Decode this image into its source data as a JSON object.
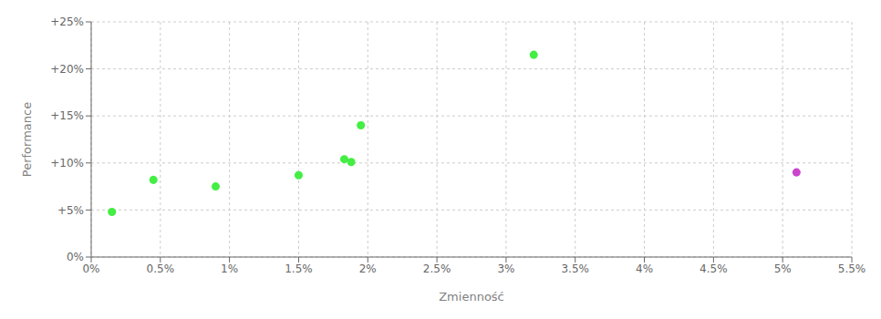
{
  "chart_data": {
    "type": "scatter",
    "xlabel": "Zmienność",
    "ylabel": "Performance",
    "series": [
      {
        "color": "#44ee44",
        "x": [
          0.15,
          0.45,
          0.9,
          1.5,
          1.83,
          1.88,
          1.95,
          3.2
        ],
        "values": [
          4.8,
          8.2,
          7.5,
          8.7,
          10.4,
          10.1,
          14.0,
          21.5
        ]
      },
      {
        "color": "#cc44cc",
        "x": [
          5.1
        ],
        "values": [
          9.0
        ]
      }
    ],
    "xlim": [
      0,
      5.5
    ],
    "ylim": [
      0,
      25
    ],
    "xticks": [
      {
        "value": 0,
        "label": "0%"
      },
      {
        "value": 0.5,
        "label": "0.5%"
      },
      {
        "value": 1.0,
        "label": "1%"
      },
      {
        "value": 1.5,
        "label": "1.5%"
      },
      {
        "value": 2.0,
        "label": "2%"
      },
      {
        "value": 2.5,
        "label": "2.5%"
      },
      {
        "value": 3.0,
        "label": "3%"
      },
      {
        "value": 3.5,
        "label": "3.5%"
      },
      {
        "value": 4.0,
        "label": "4%"
      },
      {
        "value": 4.5,
        "label": "4.5%"
      },
      {
        "value": 5.0,
        "label": "5%"
      },
      {
        "value": 5.5,
        "label": "5.5%"
      }
    ],
    "yticks": [
      {
        "value": 0,
        "label": "0%"
      },
      {
        "value": 5,
        "label": "+5%"
      },
      {
        "value": 10,
        "label": "+10%"
      },
      {
        "value": 15,
        "label": "+15%"
      },
      {
        "value": 20,
        "label": "+20%"
      },
      {
        "value": 25,
        "label": "+25%"
      }
    ],
    "grid": true
  }
}
